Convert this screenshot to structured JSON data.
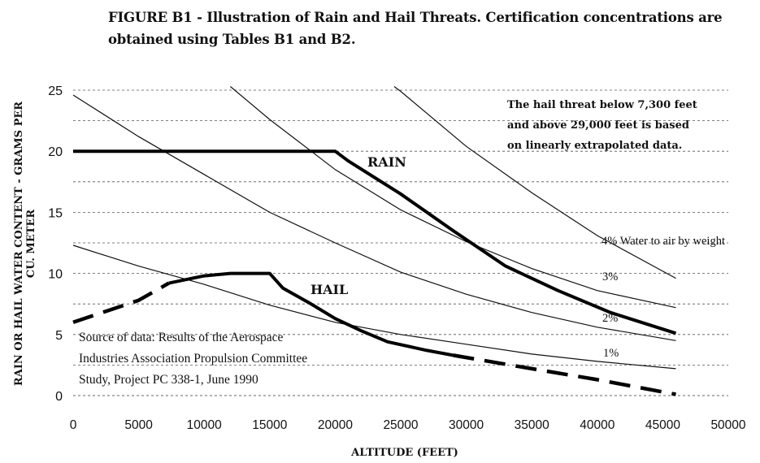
{
  "figure": {
    "title_line1": "FIGURE B1 - Illustration of Rain and Hail Threats.  Certification concentrations are",
    "title_line2": "obtained using Tables B1 and B2."
  },
  "chart_data": {
    "type": "line",
    "xlabel": "ALTITUDE (FEET)",
    "ylabel_line1": "RAIN OR HAIL WATER CONTENT - GRAMS PER",
    "ylabel_line2": "CU. METER",
    "xlim": [
      0,
      50000
    ],
    "ylim": [
      0,
      25
    ],
    "x_ticks": [
      "0",
      "5000",
      "10000",
      "15000",
      "20000",
      "25000",
      "30000",
      "35000",
      "40000",
      "45000",
      "50000"
    ],
    "y_ticks": [
      "0",
      "5",
      "10",
      "15",
      "20",
      "25"
    ],
    "grid": "horizontal dashed",
    "note": [
      "The hail threat below 7,300 feet",
      "and above 29,000 feet is based",
      "on linearly extrapolated data."
    ],
    "source_text": [
      "Source of data: Results of the Aerospace",
      "Industries Association Propulsion Committee",
      "Study, Project PC 338-1, June 1990"
    ],
    "series": [
      {
        "name": "RAIN",
        "style": "thick",
        "x": [
          0,
          20000,
          21000,
          25000,
          29000,
          33000,
          37000,
          41000,
          46000
        ],
        "y": [
          20,
          20,
          19.2,
          16.5,
          13.5,
          10.6,
          8.6,
          6.8,
          5.1
        ]
      },
      {
        "name": "HAIL",
        "style": "thick",
        "x": [
          7300,
          10000,
          12000,
          15000,
          16000,
          18000,
          20000,
          22000,
          24000,
          27000,
          29000
        ],
        "y": [
          9.2,
          9.8,
          10,
          10,
          8.8,
          7.6,
          6.3,
          5.3,
          4.4,
          3.7,
          3.3
        ]
      },
      {
        "name": "HAIL extrapolated (below 7,300 ft)",
        "style": "dashed",
        "x": [
          0,
          5000,
          7300
        ],
        "y": [
          6,
          7.8,
          9.2
        ]
      },
      {
        "name": "HAIL extrapolated (above 29,000 ft)",
        "style": "dashed",
        "x": [
          29000,
          35000,
          40000,
          46000
        ],
        "y": [
          3.3,
          2.2,
          1.3,
          0.1
        ]
      }
    ],
    "reference_curves": [
      {
        "label": "1%",
        "x": [
          0,
          5000,
          10000,
          15000,
          20000,
          25000,
          30000,
          35000,
          40000,
          46000
        ],
        "y": [
          12.3,
          10.6,
          9.1,
          7.4,
          6.0,
          5.0,
          4.2,
          3.4,
          2.8,
          2.2
        ]
      },
      {
        "label": "2%",
        "x": [
          0,
          5000,
          10000,
          15000,
          20000,
          25000,
          30000,
          35000,
          40000,
          46000
        ],
        "y": [
          24.6,
          21.2,
          18.1,
          15.0,
          12.5,
          10.1,
          8.3,
          6.8,
          5.6,
          4.5
        ]
      },
      {
        "label": "3%",
        "x": [
          12000,
          15000,
          20000,
          25000,
          30000,
          35000,
          40000,
          46000
        ],
        "y": [
          25.3,
          22.6,
          18.5,
          15.2,
          12.6,
          10.4,
          8.6,
          7.2
        ]
      },
      {
        "label": "4% Water to air by weight",
        "x": [
          24500,
          25000,
          30000,
          35000,
          40000,
          46000
        ],
        "y": [
          25.3,
          24.9,
          20.4,
          16.6,
          13.1,
          9.6
        ]
      }
    ]
  }
}
